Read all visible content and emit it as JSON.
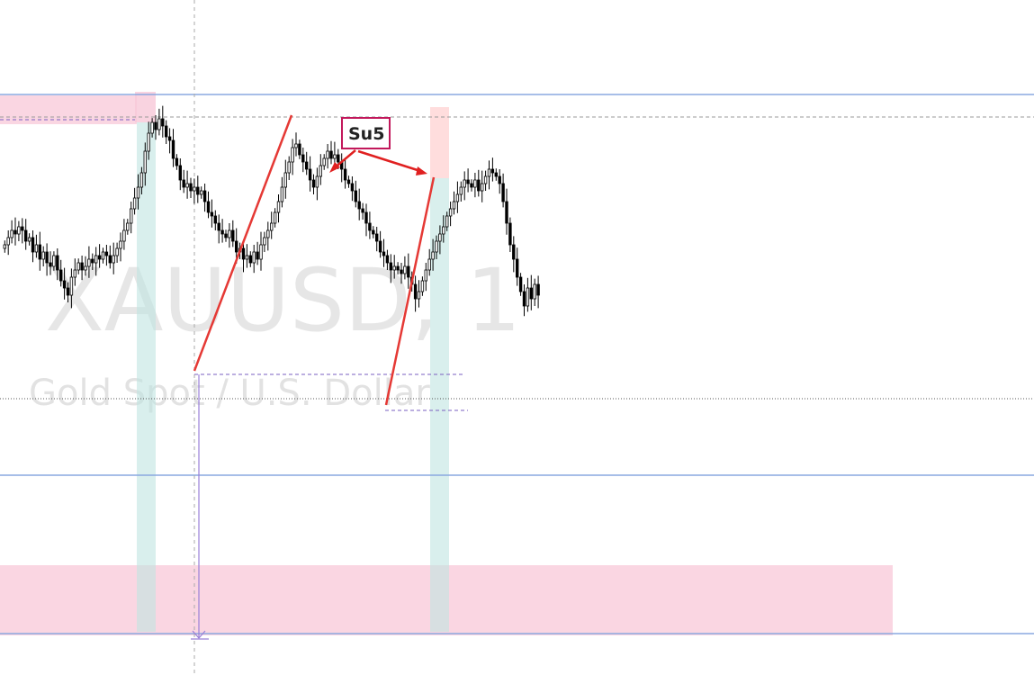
{
  "watermark": {
    "symbol": "XAUUSD, 1",
    "description": "Gold Spot / U.S. Dollar"
  },
  "annotation": {
    "label": "Su5",
    "color": "#e02020"
  },
  "colors": {
    "up_candle": "#ffffff",
    "down_candle": "#000000",
    "wick": "#000000",
    "trend_line": "#e53935",
    "level_line": "#8aa8e0",
    "zone_pink": "#f8c8d8",
    "zone_teal": "#cde9e7",
    "zone_salmon": "#ffd9d9",
    "grid": "#cfcfcf"
  },
  "chart_data": {
    "type": "candlestick",
    "title": "",
    "candles_close": [
      0.62,
      0.64,
      0.66,
      0.65,
      0.67,
      0.66,
      0.63,
      0.64,
      0.6,
      0.62,
      0.58,
      0.6,
      0.57,
      0.56,
      0.59,
      0.55,
      0.52,
      0.5,
      0.48,
      0.53,
      0.55,
      0.57,
      0.55,
      0.56,
      0.58,
      0.57,
      0.59,
      0.58,
      0.6,
      0.59,
      0.57,
      0.59,
      0.61,
      0.63,
      0.66,
      0.68,
      0.72,
      0.75,
      0.78,
      0.82,
      0.88,
      0.93,
      0.96,
      0.94,
      0.97,
      0.95,
      0.92,
      0.91,
      0.86,
      0.84,
      0.8,
      0.78,
      0.79,
      0.77,
      0.78,
      0.76,
      0.77,
      0.74,
      0.71,
      0.7,
      0.68,
      0.66,
      0.65,
      0.64,
      0.66,
      0.63,
      0.6,
      0.61,
      0.58,
      0.59,
      0.57,
      0.6,
      0.58,
      0.62,
      0.64,
      0.66,
      0.68,
      0.71,
      0.74,
      0.78,
      0.82,
      0.85,
      0.89,
      0.9,
      0.87,
      0.85,
      0.83,
      0.8,
      0.78,
      0.81,
      0.84,
      0.86,
      0.88,
      0.86,
      0.87,
      0.85,
      0.83,
      0.8,
      0.79,
      0.77,
      0.74,
      0.72,
      0.71,
      0.68,
      0.66,
      0.65,
      0.63,
      0.6,
      0.59,
      0.57,
      0.55,
      0.56,
      0.55,
      0.54,
      0.56,
      0.53,
      0.51,
      0.47,
      0.49,
      0.52,
      0.55,
      0.58,
      0.6,
      0.63,
      0.65,
      0.67,
      0.7,
      0.72,
      0.74,
      0.76,
      0.78,
      0.8,
      0.79,
      0.78,
      0.8,
      0.77,
      0.79,
      0.81,
      0.83,
      0.82,
      0.81,
      0.79,
      0.74,
      0.68,
      0.62,
      0.58,
      0.53,
      0.49,
      0.45,
      0.5,
      0.47,
      0.51,
      0.48
    ]
  }
}
